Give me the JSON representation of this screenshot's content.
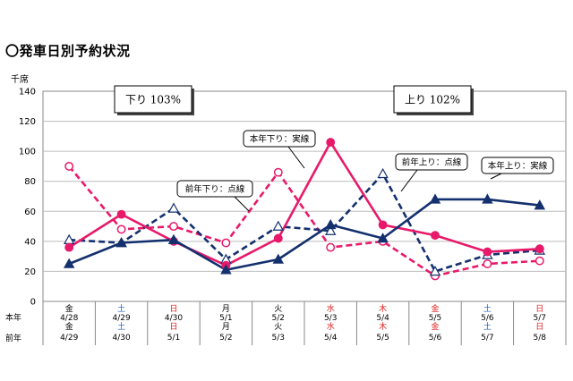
{
  "title": "〇発車日別予約状況",
  "chart_data": {
    "type": "line",
    "ylabel": "千席",
    "ylim": [
      0,
      140
    ],
    "yticks": [
      0,
      20,
      40,
      60,
      80,
      100,
      120,
      140
    ],
    "grid": true,
    "row_labels": {
      "current": "本年",
      "previous": "前年"
    },
    "categories": [
      {
        "cur_day": "金",
        "cur_date": "4/28",
        "prev_day": "金",
        "prev_date": "4/29",
        "color": "#000000"
      },
      {
        "cur_day": "土",
        "cur_date": "4/29",
        "prev_day": "土",
        "prev_date": "4/30",
        "color": "#1f5fbf"
      },
      {
        "cur_day": "日",
        "cur_date": "4/30",
        "prev_day": "日",
        "prev_date": "5/1",
        "color": "#e02020"
      },
      {
        "cur_day": "月",
        "cur_date": "5/1",
        "prev_day": "月",
        "prev_date": "5/2",
        "color": "#000000"
      },
      {
        "cur_day": "火",
        "cur_date": "5/2",
        "prev_day": "火",
        "prev_date": "5/3",
        "color": "#000000"
      },
      {
        "cur_day": "水",
        "cur_date": "5/3",
        "prev_day": "水",
        "prev_date": "5/4",
        "color": "#e02020"
      },
      {
        "cur_day": "木",
        "cur_date": "5/4",
        "prev_day": "木",
        "prev_date": "5/5",
        "color": "#e02020"
      },
      {
        "cur_day": "金",
        "cur_date": "5/5",
        "prev_day": "金",
        "prev_date": "5/6",
        "color": "#e02020"
      },
      {
        "cur_day": "土",
        "cur_date": "5/6",
        "prev_day": "土",
        "prev_date": "5/7",
        "color": "#1f5fbf"
      },
      {
        "cur_day": "日",
        "cur_date": "5/7",
        "prev_day": "日",
        "prev_date": "5/8",
        "color": "#e02020"
      }
    ],
    "series": [
      {
        "name": "本年下り：実線",
        "color": "#e8196a",
        "style": "solid",
        "marker": "circle-filled",
        "values": [
          36,
          58,
          40,
          24,
          42,
          106,
          51,
          44,
          33,
          35
        ]
      },
      {
        "name": "前年下り：点線",
        "color": "#e8196a",
        "style": "dashed",
        "marker": "circle-open",
        "values": [
          90,
          48,
          50,
          39,
          86,
          36,
          40,
          17,
          25,
          27
        ]
      },
      {
        "name": "本年上り：実線",
        "color": "#14306e",
        "style": "solid",
        "marker": "triangle-filled",
        "values": [
          25,
          39,
          41,
          21,
          28,
          51,
          42,
          68,
          68,
          64
        ]
      },
      {
        "name": "前年上り：点線",
        "color": "#14306e",
        "style": "dashed",
        "marker": "triangle-open",
        "values": [
          41,
          39,
          62,
          28,
          50,
          47,
          85,
          20,
          31,
          34
        ]
      }
    ],
    "summary_boxes": [
      {
        "text": "下り 103%"
      },
      {
        "text": "上り 102%"
      }
    ]
  }
}
